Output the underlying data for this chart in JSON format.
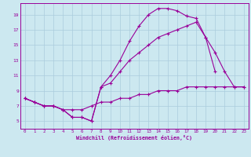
{
  "xlabel": "Windchill (Refroidissement éolien,°C)",
  "background_color": "#cce8f0",
  "grid_color": "#aaccdd",
  "line_color": "#990099",
  "xlim": [
    -0.5,
    23.5
  ],
  "ylim": [
    4.0,
    20.5
  ],
  "xticks": [
    0,
    1,
    2,
    3,
    4,
    5,
    6,
    7,
    8,
    9,
    10,
    11,
    12,
    13,
    14,
    15,
    16,
    17,
    18,
    19,
    20,
    21,
    22,
    23
  ],
  "yticks": [
    5,
    7,
    9,
    11,
    13,
    15,
    17,
    19
  ],
  "line1_x": [
    0,
    1,
    2,
    3,
    4,
    5,
    6,
    7,
    8,
    9,
    10,
    11,
    12,
    13,
    14,
    15,
    16,
    17,
    18,
    19,
    20,
    21,
    22,
    23
  ],
  "line1_y": [
    8.0,
    7.5,
    7.0,
    7.0,
    6.5,
    5.5,
    5.5,
    5.0,
    9.5,
    11.0,
    13.0,
    15.5,
    17.5,
    19.0,
    19.8,
    19.8,
    19.5,
    18.8,
    18.5,
    16.0,
    11.5,
    null,
    null,
    null
  ],
  "line2_x": [
    0,
    1,
    2,
    3,
    4,
    5,
    6,
    7,
    8,
    9,
    10,
    11,
    12,
    13,
    14,
    15,
    16,
    17,
    18,
    19,
    20,
    21,
    22,
    23
  ],
  "line2_y": [
    8.0,
    7.5,
    7.0,
    7.0,
    6.5,
    5.5,
    5.5,
    5.0,
    9.5,
    10.0,
    11.5,
    13.0,
    14.0,
    15.0,
    16.0,
    16.5,
    17.0,
    17.5,
    18.0,
    16.0,
    14.0,
    11.5,
    9.5,
    9.5
  ],
  "line3_x": [
    0,
    1,
    2,
    3,
    4,
    5,
    6,
    7,
    8,
    9,
    10,
    11,
    12,
    13,
    14,
    15,
    16,
    17,
    18,
    19,
    20,
    21,
    22,
    23
  ],
  "line3_y": [
    8.0,
    7.5,
    7.0,
    7.0,
    6.5,
    6.5,
    6.5,
    7.0,
    7.5,
    7.5,
    8.0,
    8.0,
    8.5,
    8.5,
    9.0,
    9.0,
    9.0,
    9.5,
    9.5,
    9.5,
    9.5,
    9.5,
    9.5,
    9.5
  ]
}
